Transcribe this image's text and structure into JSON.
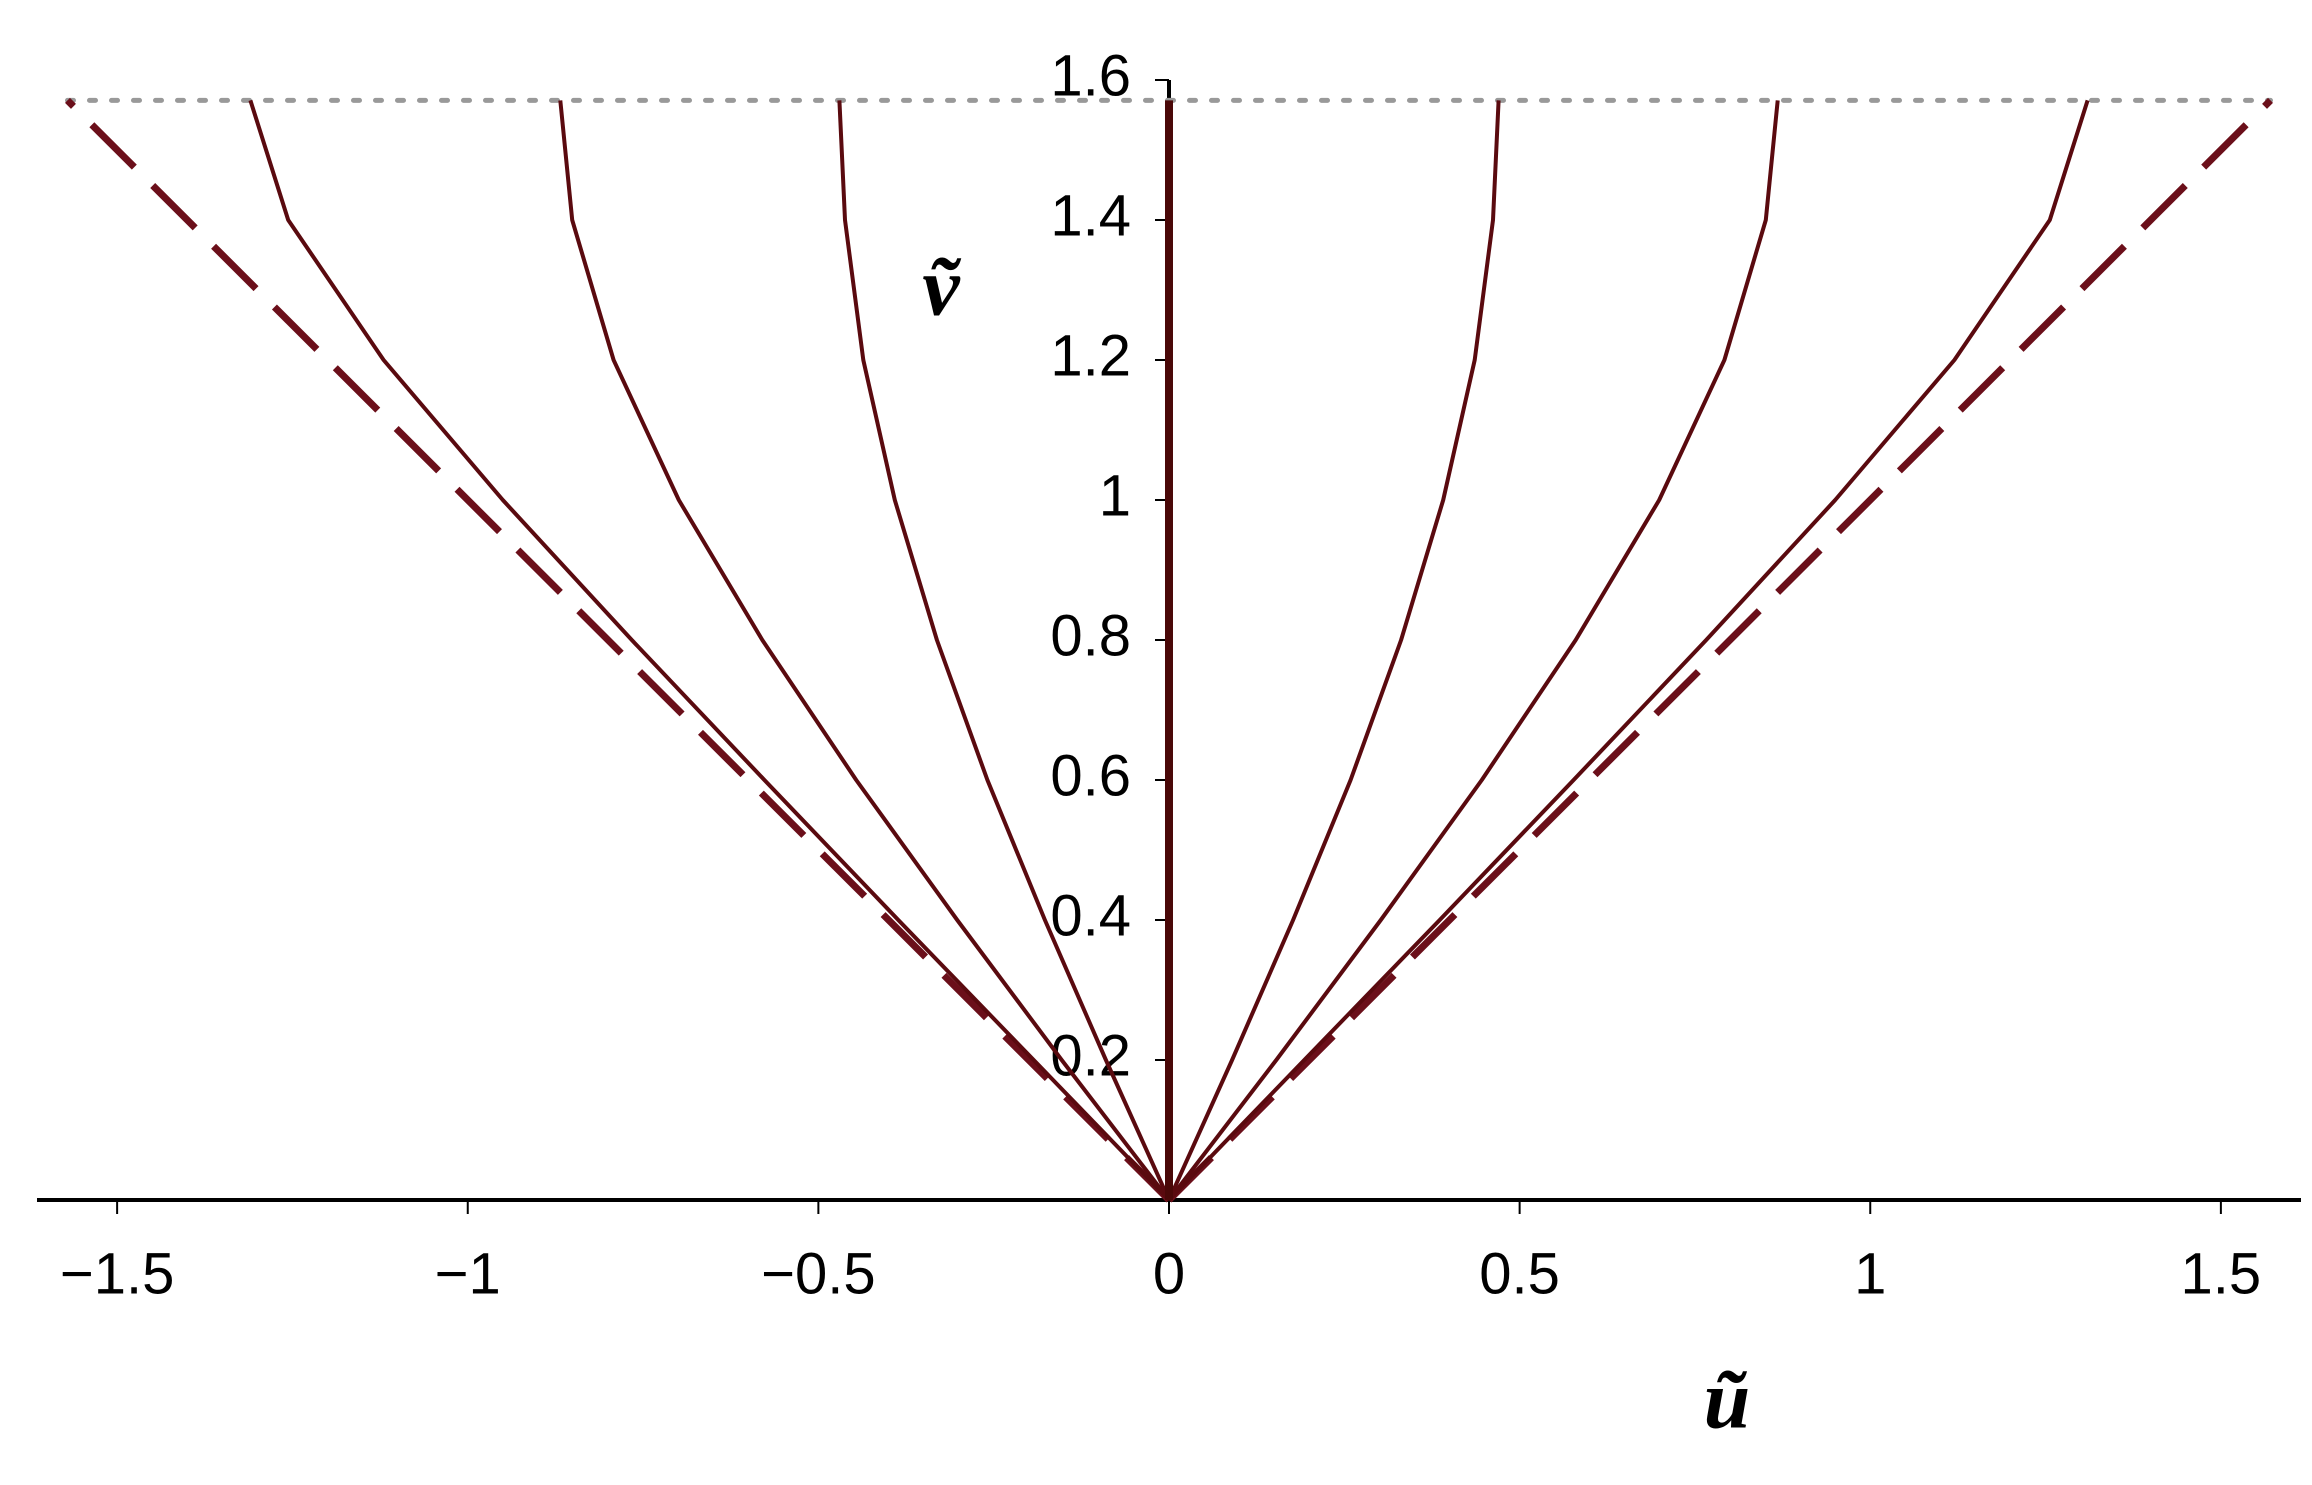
{
  "chart_data": {
    "type": "line",
    "x_label": "ũ",
    "y_label": "ṽ",
    "xlim": [
      -1.6,
      1.6
    ],
    "ylim": [
      0,
      1.6
    ],
    "xticks": [
      {
        "value": -1.5,
        "label": "−1.5"
      },
      {
        "value": -1,
        "label": "−1"
      },
      {
        "value": -0.5,
        "label": "−0.5"
      },
      0,
      0.5,
      1,
      1.5
    ],
    "yticks": [
      0.2,
      0.4,
      0.6,
      0.8,
      1,
      1.2,
      1.4,
      1.6
    ],
    "series": [
      {
        "color": "#999999",
        "style": "dotted",
        "width": 5,
        "x": [
          -1.5708,
          1.5708
        ],
        "values": [
          1.5708,
          1.5708
        ]
      },
      {
        "color": "#6b0f1a",
        "style": "dashed",
        "width": 7,
        "x": [
          0,
          -1.5708
        ],
        "values": [
          0,
          1.5708
        ]
      },
      {
        "color": "#6b0f1a",
        "style": "dashed",
        "width": 7,
        "x": [
          0,
          1.5708
        ],
        "values": [
          0,
          1.5708
        ]
      },
      {
        "color": "#5a0a0f",
        "style": "solid",
        "width": 4,
        "x": [
          0,
          -0.193,
          -0.386,
          -0.577,
          -0.766,
          -0.95,
          -1.12,
          -1.256,
          -1.31
        ],
        "values": [
          0,
          0.2,
          0.4,
          0.6,
          0.8,
          1,
          1.2,
          1.4,
          1.5708
        ]
      },
      {
        "color": "#5a0a0f",
        "style": "solid",
        "width": 4,
        "x": [
          0,
          -0.153,
          -0.302,
          -0.446,
          -0.58,
          -0.699,
          -0.792,
          -0.851,
          -0.868
        ],
        "values": [
          0,
          0.2,
          0.4,
          0.6,
          0.8,
          1,
          1.2,
          1.4,
          1.5708
        ]
      },
      {
        "color": "#5a0a0f",
        "style": "solid",
        "width": 4,
        "x": [
          0,
          -0.09,
          -0.177,
          -0.259,
          -0.331,
          -0.391,
          -0.436,
          -0.462,
          -0.47
        ],
        "values": [
          0,
          0.2,
          0.4,
          0.6,
          0.8,
          1,
          1.2,
          1.4,
          1.5708
        ]
      },
      {
        "color": "#5a0a0f",
        "style": "solid",
        "width": 4,
        "x": [
          0,
          0.09,
          0.177,
          0.259,
          0.331,
          0.391,
          0.436,
          0.462,
          0.47
        ],
        "values": [
          0,
          0.2,
          0.4,
          0.6,
          0.8,
          1,
          1.2,
          1.4,
          1.5708
        ]
      },
      {
        "color": "#5a0a0f",
        "style": "solid",
        "width": 4,
        "x": [
          0,
          0.153,
          0.302,
          0.446,
          0.58,
          0.699,
          0.792,
          0.851,
          0.868
        ],
        "values": [
          0,
          0.2,
          0.4,
          0.6,
          0.8,
          1,
          1.2,
          1.4,
          1.5708
        ]
      },
      {
        "color": "#5a0a0f",
        "style": "solid",
        "width": 4,
        "x": [
          0,
          0.193,
          0.386,
          0.577,
          0.766,
          0.95,
          1.12,
          1.256,
          1.31
        ],
        "values": [
          0,
          0.2,
          0.4,
          0.6,
          0.8,
          1,
          1.2,
          1.4,
          1.5708
        ]
      },
      {
        "color": "#4a0808",
        "style": "solid",
        "width": 8,
        "x": [
          0,
          0
        ],
        "values": [
          0,
          1.5708
        ]
      }
    ]
  }
}
